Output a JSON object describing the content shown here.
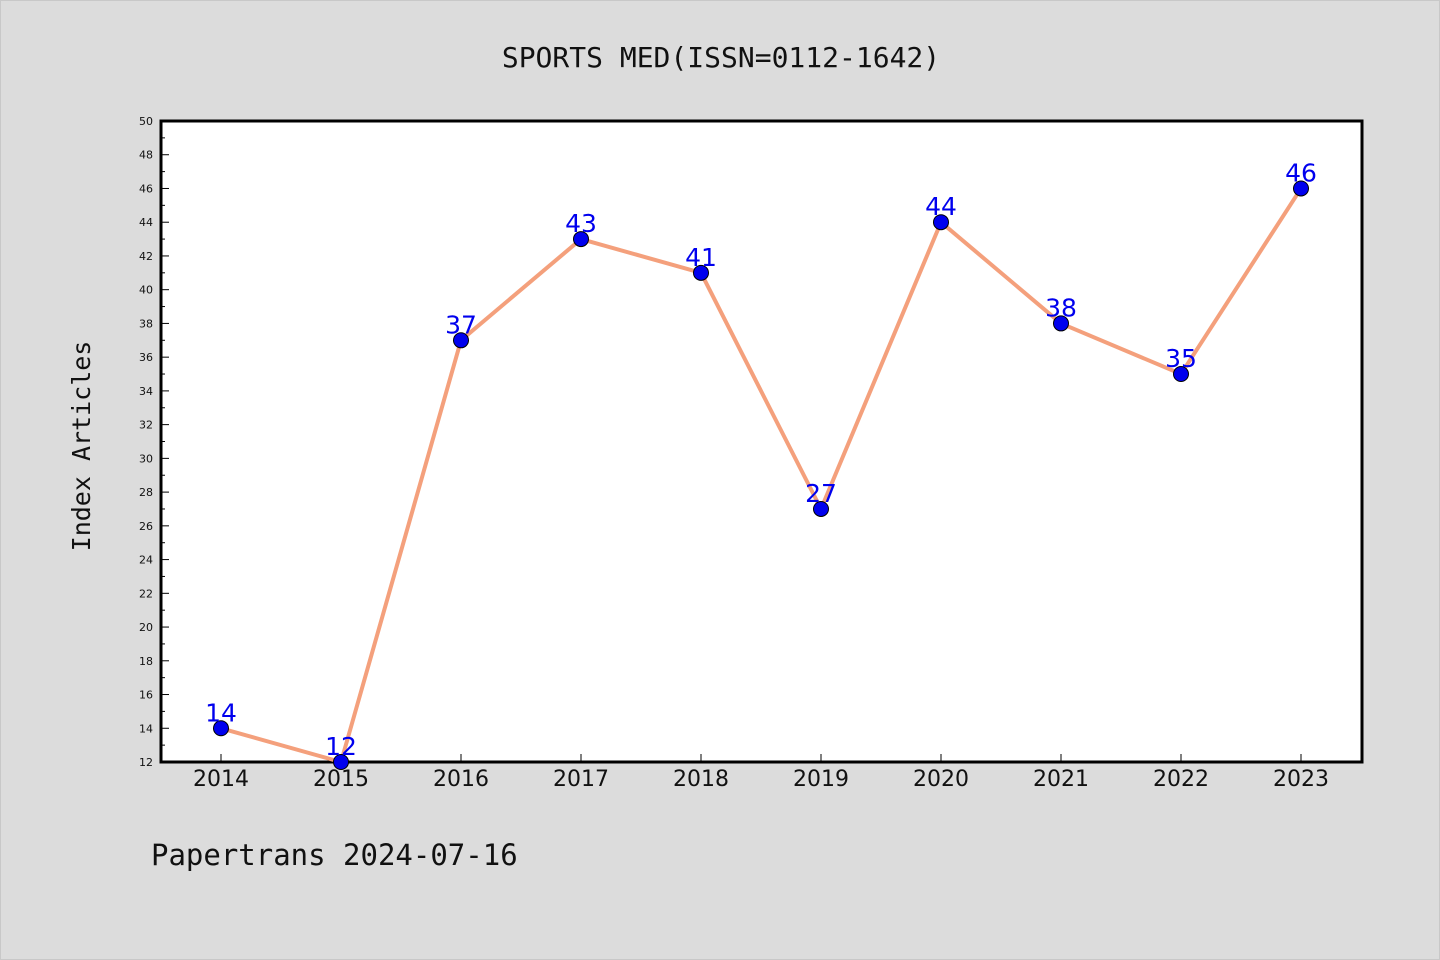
{
  "chart_data": {
    "type": "line",
    "title": "SPORTS MED(ISSN=0112-1642)",
    "xlabel": "",
    "ylabel": "Index Articles",
    "categories": [
      "2014",
      "2015",
      "2016",
      "2017",
      "2018",
      "2019",
      "2020",
      "2021",
      "2022",
      "2023"
    ],
    "series": [
      {
        "values": [
          14,
          12,
          37,
          43,
          41,
          27,
          44,
          38,
          35,
          46
        ],
        "line_color": "#f4a07c",
        "marker_color": "#0000ee"
      }
    ],
    "ylim": [
      12,
      50
    ],
    "yticks": [
      12,
      14,
      16,
      18,
      20,
      22,
      24,
      26,
      28,
      30,
      32,
      34,
      36,
      38,
      40,
      42,
      44,
      46,
      48,
      50
    ],
    "grid": false,
    "data_labels": true
  },
  "footer": {
    "text": "Papertrans 2024-07-16"
  }
}
